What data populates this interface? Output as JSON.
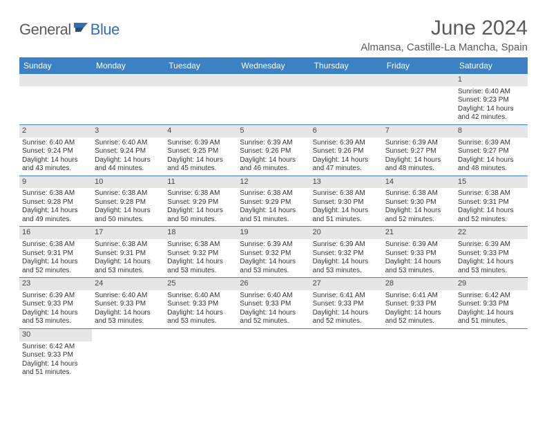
{
  "logo": {
    "general": "General",
    "blue": "Blue"
  },
  "title": "June 2024",
  "location": "Almansa, Castille-La Mancha, Spain",
  "header_color": "#3b82c4",
  "daybar_color": "#e6e6e6",
  "weekdays": [
    "Sunday",
    "Monday",
    "Tuesday",
    "Wednesday",
    "Thursday",
    "Friday",
    "Saturday"
  ],
  "weeks": [
    [
      null,
      null,
      null,
      null,
      null,
      null,
      {
        "n": "1",
        "sr": "Sunrise: 6:40 AM",
        "ss": "Sunset: 9:23 PM",
        "d1": "Daylight: 14 hours",
        "d2": "and 42 minutes."
      }
    ],
    [
      {
        "n": "2",
        "sr": "Sunrise: 6:40 AM",
        "ss": "Sunset: 9:24 PM",
        "d1": "Daylight: 14 hours",
        "d2": "and 43 minutes."
      },
      {
        "n": "3",
        "sr": "Sunrise: 6:40 AM",
        "ss": "Sunset: 9:24 PM",
        "d1": "Daylight: 14 hours",
        "d2": "and 44 minutes."
      },
      {
        "n": "4",
        "sr": "Sunrise: 6:39 AM",
        "ss": "Sunset: 9:25 PM",
        "d1": "Daylight: 14 hours",
        "d2": "and 45 minutes."
      },
      {
        "n": "5",
        "sr": "Sunrise: 6:39 AM",
        "ss": "Sunset: 9:26 PM",
        "d1": "Daylight: 14 hours",
        "d2": "and 46 minutes."
      },
      {
        "n": "6",
        "sr": "Sunrise: 6:39 AM",
        "ss": "Sunset: 9:26 PM",
        "d1": "Daylight: 14 hours",
        "d2": "and 47 minutes."
      },
      {
        "n": "7",
        "sr": "Sunrise: 6:39 AM",
        "ss": "Sunset: 9:27 PM",
        "d1": "Daylight: 14 hours",
        "d2": "and 48 minutes."
      },
      {
        "n": "8",
        "sr": "Sunrise: 6:39 AM",
        "ss": "Sunset: 9:27 PM",
        "d1": "Daylight: 14 hours",
        "d2": "and 48 minutes."
      }
    ],
    [
      {
        "n": "9",
        "sr": "Sunrise: 6:38 AM",
        "ss": "Sunset: 9:28 PM",
        "d1": "Daylight: 14 hours",
        "d2": "and 49 minutes."
      },
      {
        "n": "10",
        "sr": "Sunrise: 6:38 AM",
        "ss": "Sunset: 9:28 PM",
        "d1": "Daylight: 14 hours",
        "d2": "and 50 minutes."
      },
      {
        "n": "11",
        "sr": "Sunrise: 6:38 AM",
        "ss": "Sunset: 9:29 PM",
        "d1": "Daylight: 14 hours",
        "d2": "and 50 minutes."
      },
      {
        "n": "12",
        "sr": "Sunrise: 6:38 AM",
        "ss": "Sunset: 9:29 PM",
        "d1": "Daylight: 14 hours",
        "d2": "and 51 minutes."
      },
      {
        "n": "13",
        "sr": "Sunrise: 6:38 AM",
        "ss": "Sunset: 9:30 PM",
        "d1": "Daylight: 14 hours",
        "d2": "and 51 minutes."
      },
      {
        "n": "14",
        "sr": "Sunrise: 6:38 AM",
        "ss": "Sunset: 9:30 PM",
        "d1": "Daylight: 14 hours",
        "d2": "and 52 minutes."
      },
      {
        "n": "15",
        "sr": "Sunrise: 6:38 AM",
        "ss": "Sunset: 9:31 PM",
        "d1": "Daylight: 14 hours",
        "d2": "and 52 minutes."
      }
    ],
    [
      {
        "n": "16",
        "sr": "Sunrise: 6:38 AM",
        "ss": "Sunset: 9:31 PM",
        "d1": "Daylight: 14 hours",
        "d2": "and 52 minutes."
      },
      {
        "n": "17",
        "sr": "Sunrise: 6:38 AM",
        "ss": "Sunset: 9:31 PM",
        "d1": "Daylight: 14 hours",
        "d2": "and 53 minutes."
      },
      {
        "n": "18",
        "sr": "Sunrise: 6:38 AM",
        "ss": "Sunset: 9:32 PM",
        "d1": "Daylight: 14 hours",
        "d2": "and 53 minutes."
      },
      {
        "n": "19",
        "sr": "Sunrise: 6:39 AM",
        "ss": "Sunset: 9:32 PM",
        "d1": "Daylight: 14 hours",
        "d2": "and 53 minutes."
      },
      {
        "n": "20",
        "sr": "Sunrise: 6:39 AM",
        "ss": "Sunset: 9:32 PM",
        "d1": "Daylight: 14 hours",
        "d2": "and 53 minutes."
      },
      {
        "n": "21",
        "sr": "Sunrise: 6:39 AM",
        "ss": "Sunset: 9:33 PM",
        "d1": "Daylight: 14 hours",
        "d2": "and 53 minutes."
      },
      {
        "n": "22",
        "sr": "Sunrise: 6:39 AM",
        "ss": "Sunset: 9:33 PM",
        "d1": "Daylight: 14 hours",
        "d2": "and 53 minutes."
      }
    ],
    [
      {
        "n": "23",
        "sr": "Sunrise: 6:39 AM",
        "ss": "Sunset: 9:33 PM",
        "d1": "Daylight: 14 hours",
        "d2": "and 53 minutes."
      },
      {
        "n": "24",
        "sr": "Sunrise: 6:40 AM",
        "ss": "Sunset: 9:33 PM",
        "d1": "Daylight: 14 hours",
        "d2": "and 53 minutes."
      },
      {
        "n": "25",
        "sr": "Sunrise: 6:40 AM",
        "ss": "Sunset: 9:33 PM",
        "d1": "Daylight: 14 hours",
        "d2": "and 53 minutes."
      },
      {
        "n": "26",
        "sr": "Sunrise: 6:40 AM",
        "ss": "Sunset: 9:33 PM",
        "d1": "Daylight: 14 hours",
        "d2": "and 52 minutes."
      },
      {
        "n": "27",
        "sr": "Sunrise: 6:41 AM",
        "ss": "Sunset: 9:33 PM",
        "d1": "Daylight: 14 hours",
        "d2": "and 52 minutes."
      },
      {
        "n": "28",
        "sr": "Sunrise: 6:41 AM",
        "ss": "Sunset: 9:33 PM",
        "d1": "Daylight: 14 hours",
        "d2": "and 52 minutes."
      },
      {
        "n": "29",
        "sr": "Sunrise: 6:42 AM",
        "ss": "Sunset: 9:33 PM",
        "d1": "Daylight: 14 hours",
        "d2": "and 51 minutes."
      }
    ],
    [
      {
        "n": "30",
        "sr": "Sunrise: 6:42 AM",
        "ss": "Sunset: 9:33 PM",
        "d1": "Daylight: 14 hours",
        "d2": "and 51 minutes."
      },
      null,
      null,
      null,
      null,
      null,
      null
    ]
  ]
}
